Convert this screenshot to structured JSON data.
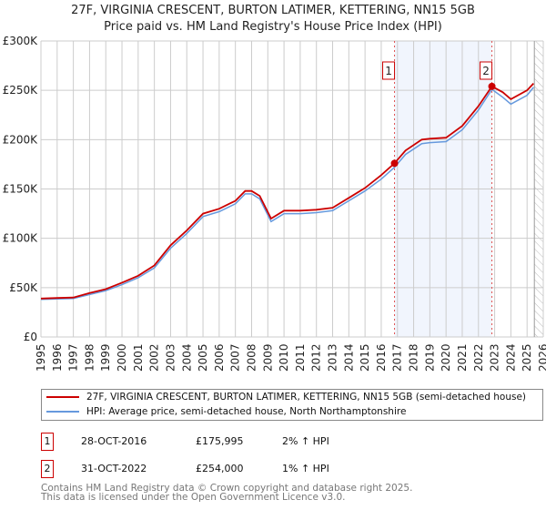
{
  "chart_data": {
    "type": "line",
    "title": "27F, VIRGINIA CRESCENT, BURTON LATIMER, KETTERING, NN15 5GB",
    "subtitle": "Price paid vs. HM Land Registry's House Price Index (HPI)",
    "xlim": [
      1995,
      2026
    ],
    "ylim": [
      0,
      300000
    ],
    "y_ticks": [
      0,
      50000,
      100000,
      150000,
      200000,
      250000,
      300000
    ],
    "y_tick_labels": [
      "£0",
      "£50K",
      "£100K",
      "£150K",
      "£200K",
      "£250K",
      "£300K"
    ],
    "x_ticks": [
      "1995",
      "1996",
      "1997",
      "1998",
      "1999",
      "2000",
      "2001",
      "2002",
      "2003",
      "2004",
      "2005",
      "2006",
      "2007",
      "2008",
      "2009",
      "2010",
      "2011",
      "2012",
      "2013",
      "2014",
      "2015",
      "2016",
      "2017",
      "2018",
      "2019",
      "2020",
      "2021",
      "2022",
      "2023",
      "2024",
      "2025",
      "2026"
    ],
    "grid": true,
    "series": [
      {
        "name": "27F, VIRGINIA CRESCENT, BURTON LATIMER, KETTERING, NN15 5GB (semi-detached house)",
        "color": "#cc0000",
        "x": [
          1995,
          1996,
          1997,
          1998,
          1999,
          2000,
          2001,
          2002,
          2003,
          2004,
          2005,
          2006,
          2007,
          2007.6,
          2008,
          2008.5,
          2009.2,
          2010,
          2011,
          2012,
          2013,
          2014,
          2015,
          2016,
          2016.82,
          2017.5,
          2018.5,
          2019,
          2020,
          2021,
          2022,
          2022.83,
          2023.5,
          2024,
          2025,
          2025.4
        ],
        "y": [
          39000,
          39500,
          40000,
          44500,
          48500,
          55000,
          62000,
          72500,
          93000,
          108000,
          125000,
          130000,
          138000,
          148000,
          148000,
          143000,
          120000,
          128000,
          128000,
          129000,
          131000,
          141000,
          151000,
          164000,
          175995,
          189000,
          200000,
          201000,
          202000,
          214000,
          234000,
          254000,
          248000,
          241000,
          250000,
          257000
        ]
      },
      {
        "name": "HPI: Average price, semi-detached house, North Northamptonshire",
        "color": "#6699dd",
        "x": [
          1995,
          1996,
          1997,
          1998,
          1999,
          2000,
          2001,
          2002,
          2003,
          2004,
          2005,
          2006,
          2007,
          2007.6,
          2008,
          2008.5,
          2009.2,
          2010,
          2011,
          2012,
          2013,
          2014,
          2015,
          2016,
          2016.82,
          2017.5,
          2018.5,
          2019,
          2020,
          2021,
          2022,
          2022.83,
          2023.5,
          2024,
          2025,
          2025.4
        ],
        "y": [
          38000,
          38500,
          39000,
          43000,
          47000,
          53000,
          60000,
          70000,
          90000,
          105000,
          122000,
          127000,
          135000,
          145000,
          145000,
          140000,
          117000,
          125000,
          125000,
          126000,
          128000,
          138000,
          148000,
          160000,
          172000,
          185000,
          196000,
          197000,
          198000,
          210000,
          230000,
          251000,
          243000,
          236000,
          245000,
          253000
        ]
      }
    ],
    "sales": [
      {
        "label": "1",
        "x": 2016.82,
        "y": 175995,
        "date": "28-OCT-2016",
        "price": "£175,995",
        "hpi": "2% ↑ HPI"
      },
      {
        "label": "2",
        "x": 2022.83,
        "y": 254000,
        "date": "31-OCT-2022",
        "price": "£254,000",
        "hpi": "1% ↑ HPI"
      }
    ],
    "forecast_from": 2025.45,
    "legend_position": "below"
  },
  "footer": [
    "Contains HM Land Registry data © Crown copyright and database right 2025.",
    "This data is licensed under the Open Government Licence v3.0."
  ]
}
